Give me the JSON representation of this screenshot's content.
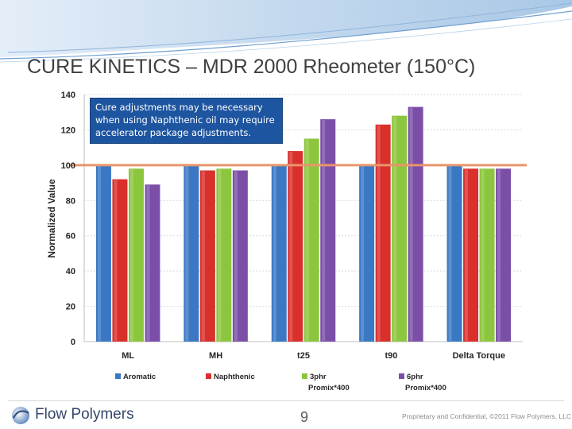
{
  "slide": {
    "title": "CURE KINETICS – MDR 2000 Rheometer (150°C)",
    "callout": "Cure adjustments may be necessary when using Naphthenic oil may require accelerator package adjustments.",
    "page_number": "9",
    "company": "Flow Polymers",
    "confidential": "Proprietary and Confidential, ©2011 Flow Polymers, LLC"
  },
  "colors": {
    "banner_blue": "#c9dcef",
    "reference_line": "#e8956b",
    "callout_bg": "#1e55a0"
  },
  "chart_data": {
    "type": "bar",
    "ylabel": "Normalized Value",
    "xlabel": "",
    "ylim": [
      0,
      140
    ],
    "yticks": [
      0,
      20,
      40,
      60,
      80,
      100,
      120,
      140
    ],
    "grid": true,
    "legend_position": "bottom",
    "reference_line": 100,
    "categories": [
      "ML",
      "MH",
      "t25",
      "t90",
      "Delta Torque"
    ],
    "series": [
      {
        "name": "Aromatic",
        "color": "#3a78c4",
        "values": [
          100,
          100,
          100,
          100,
          100
        ]
      },
      {
        "name": "Naphthenic",
        "color": "#d9302c",
        "values": [
          92,
          97,
          108,
          123,
          98
        ]
      },
      {
        "name": "3phr Promix*400",
        "name_line1": "3phr",
        "name_line2": "Promix*400",
        "color": "#8cc63e",
        "values": [
          98,
          98,
          115,
          128,
          98
        ]
      },
      {
        "name": "6phr Promix*400",
        "name_line1": "6phr",
        "name_line2": "Promix*400",
        "color": "#7b4fa8",
        "values": [
          89,
          97,
          126,
          133,
          98
        ]
      }
    ]
  }
}
